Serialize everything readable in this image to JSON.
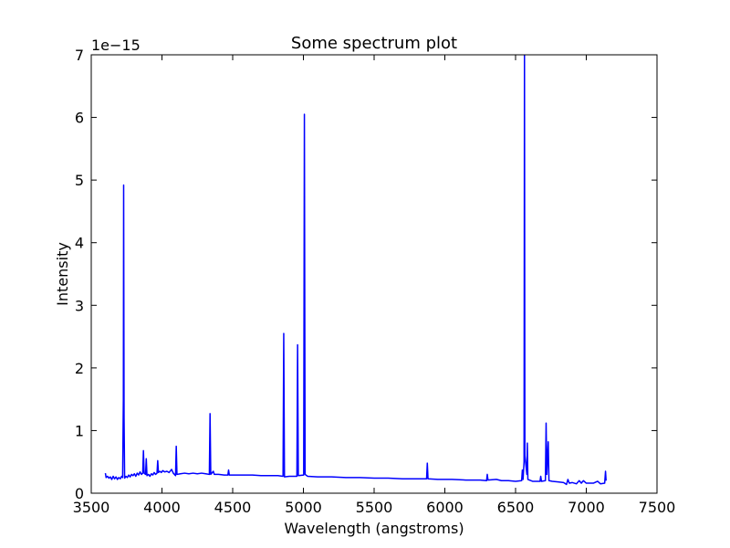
{
  "chart_data": {
    "type": "line",
    "title": "Some spectrum plot",
    "x_label": "Wavelength (angstroms)",
    "y_label": "Intensity",
    "y_offset_label": "1e−15",
    "xlim": [
      3500,
      7500
    ],
    "xticks": [
      3500,
      4000,
      4500,
      5000,
      5500,
      6000,
      6500,
      7000,
      7500
    ],
    "ylim": [
      0,
      7
    ],
    "yticks": [
      0,
      1,
      2,
      3,
      4,
      5,
      6,
      7
    ],
    "grid": false,
    "series": [
      {
        "color": "#0000ff",
        "x": [
          3600,
          3605,
          3615,
          3625,
          3635,
          3645,
          3655,
          3665,
          3675,
          3685,
          3695,
          3705,
          3715,
          3722,
          3727,
          3729,
          3732,
          3736,
          3745,
          3755,
          3765,
          3775,
          3785,
          3795,
          3805,
          3815,
          3825,
          3835,
          3845,
          3855,
          3864,
          3869,
          3874,
          3884,
          3889,
          3894,
          3905,
          3915,
          3925,
          3935,
          3945,
          3955,
          3965,
          3970,
          3975,
          3985,
          3995,
          4005,
          4020,
          4035,
          4050,
          4068,
          4080,
          4096,
          4101,
          4106,
          4130,
          4160,
          4190,
          4220,
          4250,
          4280,
          4310,
          4335,
          4340,
          4345,
          4363,
          4370,
          4400,
          4440,
          4466,
          4471,
          4476,
          4520,
          4580,
          4640,
          4700,
          4760,
          4820,
          4856,
          4861,
          4866,
          4900,
          4954,
          4959,
          4964,
          5002,
          5007,
          5012,
          5030,
          5100,
          5200,
          5300,
          5400,
          5500,
          5600,
          5700,
          5800,
          5871,
          5876,
          5881,
          5950,
          6050,
          6150,
          6250,
          6295,
          6300,
          6305,
          6364,
          6400,
          6450,
          6500,
          6543,
          6548,
          6553,
          6560,
          6563,
          6566,
          6580,
          6583,
          6587,
          6620,
          6673,
          6678,
          6683,
          6711,
          6716,
          6721,
          6731,
          6736,
          6760,
          6800,
          6840,
          6860,
          6870,
          6880,
          6900,
          6930,
          6950,
          6965,
          6980,
          7000,
          7050,
          7080,
          7100,
          7130,
          7136,
          7140
        ],
        "values": [
          0.32,
          0.25,
          0.27,
          0.24,
          0.26,
          0.22,
          0.27,
          0.23,
          0.26,
          0.22,
          0.25,
          0.23,
          0.27,
          0.25,
          1.5,
          4.92,
          1.2,
          0.24,
          0.27,
          0.25,
          0.29,
          0.26,
          0.3,
          0.28,
          0.31,
          0.27,
          0.32,
          0.29,
          0.34,
          0.3,
          0.32,
          0.68,
          0.32,
          0.3,
          0.55,
          0.28,
          0.3,
          0.27,
          0.31,
          0.29,
          0.33,
          0.3,
          0.32,
          0.52,
          0.33,
          0.35,
          0.33,
          0.36,
          0.34,
          0.35,
          0.33,
          0.38,
          0.32,
          0.28,
          0.75,
          0.3,
          0.31,
          0.32,
          0.31,
          0.32,
          0.31,
          0.32,
          0.31,
          0.3,
          1.27,
          0.3,
          0.35,
          0.3,
          0.3,
          0.29,
          0.29,
          0.37,
          0.29,
          0.29,
          0.29,
          0.29,
          0.28,
          0.28,
          0.28,
          0.27,
          2.55,
          0.26,
          0.27,
          0.27,
          2.37,
          0.28,
          0.29,
          6.05,
          0.3,
          0.27,
          0.26,
          0.26,
          0.25,
          0.25,
          0.24,
          0.24,
          0.23,
          0.23,
          0.23,
          0.48,
          0.23,
          0.22,
          0.22,
          0.21,
          0.21,
          0.2,
          0.3,
          0.21,
          0.22,
          0.2,
          0.2,
          0.19,
          0.2,
          0.37,
          0.22,
          0.5,
          7.0,
          0.6,
          0.3,
          0.8,
          0.22,
          0.19,
          0.19,
          0.27,
          0.19,
          0.2,
          1.12,
          0.3,
          0.82,
          0.2,
          0.19,
          0.18,
          0.17,
          0.14,
          0.22,
          0.16,
          0.17,
          0.15,
          0.2,
          0.16,
          0.2,
          0.16,
          0.16,
          0.19,
          0.15,
          0.16,
          0.35,
          0.2
        ]
      }
    ]
  }
}
